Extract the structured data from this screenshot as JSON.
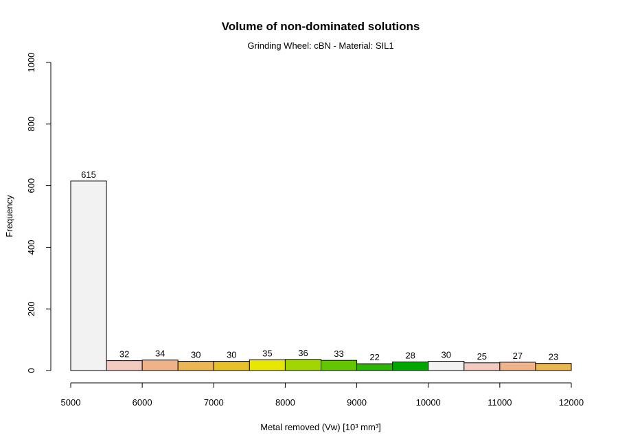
{
  "chart_data": {
    "type": "bar",
    "title": "Volume of non-dominated solutions",
    "subtitle": "Grinding Wheel: cBN - Material: SIL1",
    "xlabel": "Metal removed (Vw) [10³ mm³]",
    "ylabel": "Frequency",
    "xlim": [
      5000,
      12000
    ],
    "ylim": [
      0,
      1000
    ],
    "x_ticks": [
      5000,
      6000,
      7000,
      8000,
      9000,
      10000,
      11000,
      12000
    ],
    "y_ticks": [
      0,
      200,
      400,
      600,
      800,
      1000
    ],
    "grid": false,
    "legend": "none",
    "bins": [
      {
        "start": 5000,
        "end": 5500,
        "value": 615,
        "label": "615",
        "color": "#f2f2f2"
      },
      {
        "start": 5500,
        "end": 6000,
        "value": 32,
        "label": "32",
        "color": "#f2cac0"
      },
      {
        "start": 6000,
        "end": 6500,
        "value": 34,
        "label": "34",
        "color": "#efb38a"
      },
      {
        "start": 6500,
        "end": 7000,
        "value": 30,
        "label": "30",
        "color": "#ebb654"
      },
      {
        "start": 7000,
        "end": 7500,
        "value": 30,
        "label": "30",
        "color": "#e6c12a"
      },
      {
        "start": 7500,
        "end": 8000,
        "value": 35,
        "label": "35",
        "color": "#e6e600"
      },
      {
        "start": 8000,
        "end": 8500,
        "value": 36,
        "label": "36",
        "color": "#a2d600"
      },
      {
        "start": 8500,
        "end": 9000,
        "value": 33,
        "label": "33",
        "color": "#63c600"
      },
      {
        "start": 9000,
        "end": 9500,
        "value": 22,
        "label": "22",
        "color": "#2cb600"
      },
      {
        "start": 9500,
        "end": 10000,
        "value": 28,
        "label": "28",
        "color": "#00a600"
      },
      {
        "start": 10000,
        "end": 10500,
        "value": 30,
        "label": "30",
        "color": "#f2f2f2"
      },
      {
        "start": 10500,
        "end": 11000,
        "value": 25,
        "label": "25",
        "color": "#f2cac0"
      },
      {
        "start": 11000,
        "end": 11500,
        "value": 27,
        "label": "27",
        "color": "#efb38a"
      },
      {
        "start": 11500,
        "end": 12000,
        "value": 23,
        "label": "23",
        "color": "#ebb654"
      }
    ]
  }
}
